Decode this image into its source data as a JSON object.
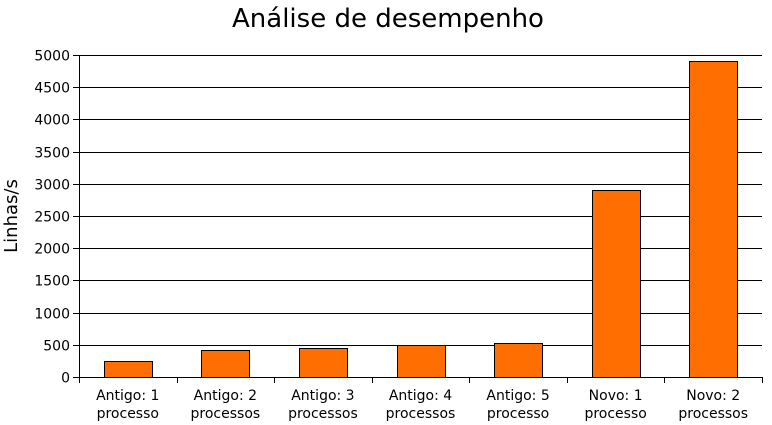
{
  "chart_data": {
    "type": "bar",
    "title": "Análise de desempenho",
    "xlabel": "",
    "ylabel": "Linhas/s",
    "categories": [
      "Antigo: 1 processo",
      "Antigo: 2 processos",
      "Antigo: 3 processos",
      "Antigo: 4 processos",
      "Antigo: 5 processo",
      "Novo: 1 processo",
      "Novo: 2 processos"
    ],
    "category_lines": [
      [
        "Antigo: 1",
        "processo"
      ],
      [
        "Antigo: 2",
        "processos"
      ],
      [
        "Antigo: 3",
        "processos"
      ],
      [
        "Antigo: 4",
        "processos"
      ],
      [
        "Antigo: 5",
        "processo"
      ],
      [
        "Novo: 1",
        "processo"
      ],
      [
        "Novo: 2",
        "processos"
      ]
    ],
    "values": [
      250,
      420,
      450,
      490,
      530,
      2900,
      4900
    ],
    "ylim": [
      0,
      5000
    ],
    "yticks": [
      0,
      500,
      1000,
      1500,
      2000,
      2500,
      3000,
      3500,
      4000,
      4500,
      5000
    ],
    "grid": true,
    "legend": "none",
    "bar_color": "#ff6e00"
  }
}
